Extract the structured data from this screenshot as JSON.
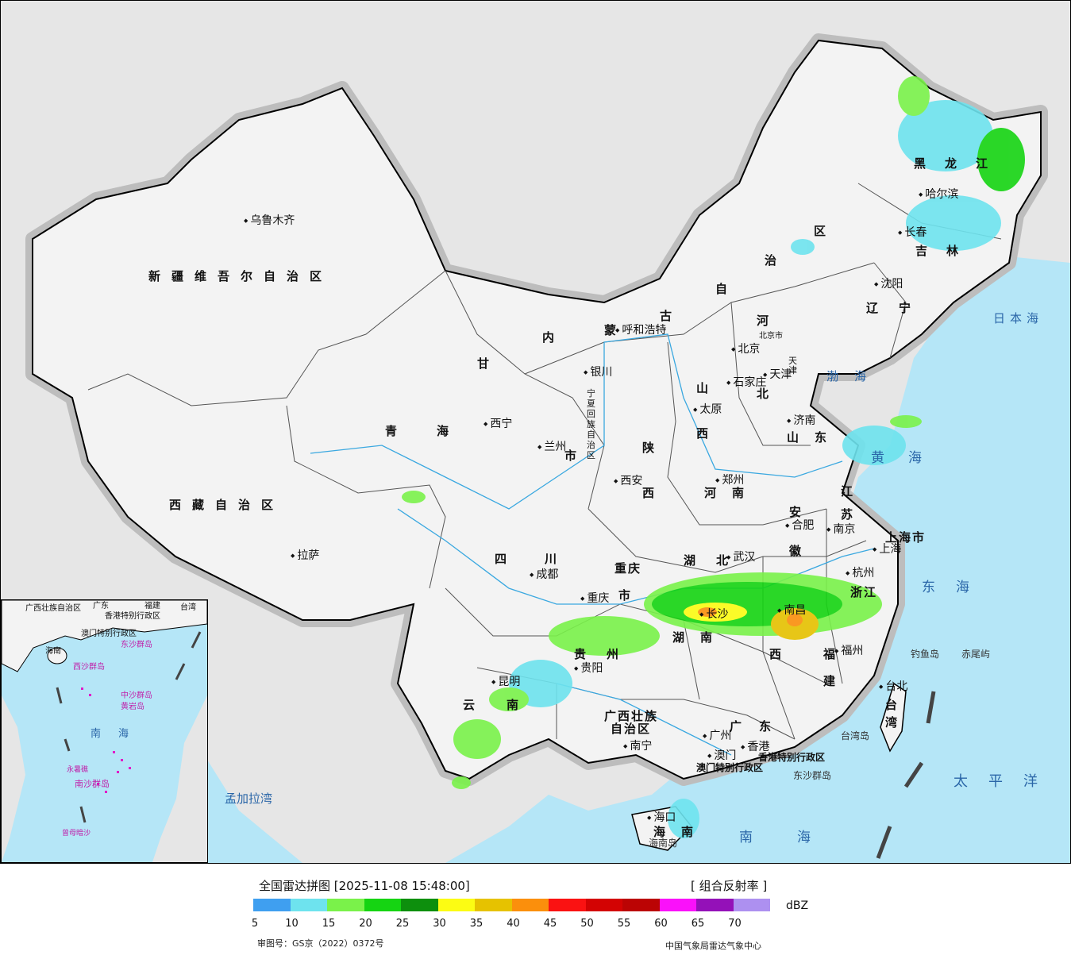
{
  "map": {
    "provinces": [
      {
        "name": "新疆维吾尔自治区",
        "label": "新疆维吾尔自治区"
      },
      {
        "name": "西藏自治区",
        "label": "西藏自治区"
      },
      {
        "name": "青海",
        "label": "青海"
      },
      {
        "name": "甘肃",
        "label": "甘"
      },
      {
        "name": "内蒙古自治区-1",
        "label": "内"
      },
      {
        "name": "内蒙古自治区-2",
        "label": "蒙"
      },
      {
        "name": "内蒙古自治区-3",
        "label": "古"
      },
      {
        "name": "内蒙古自治区-4",
        "label": "自"
      },
      {
        "name": "内蒙古自治区-5",
        "label": "治"
      },
      {
        "name": "内蒙古自治区-6",
        "label": "区"
      },
      {
        "name": "黑龙江",
        "label": "黑龙江"
      },
      {
        "name": "吉林",
        "label": "吉林"
      },
      {
        "name": "辽宁",
        "label": "辽宁"
      },
      {
        "name": "河北-1",
        "label": "河"
      },
      {
        "name": "河北-2",
        "label": "北"
      },
      {
        "name": "山西-1",
        "label": "山"
      },
      {
        "name": "山西-2",
        "label": "西"
      },
      {
        "name": "陕西-1",
        "label": "陕"
      },
      {
        "name": "陕西-2",
        "label": "西"
      },
      {
        "name": "山东",
        "label": "山东"
      },
      {
        "name": "河南",
        "label": "河南"
      },
      {
        "name": "江苏-1",
        "label": "江"
      },
      {
        "name": "江苏-2",
        "label": "苏"
      },
      {
        "name": "安徽-1",
        "label": "安"
      },
      {
        "name": "安徽-2",
        "label": "徽"
      },
      {
        "name": "上海市",
        "label": "上海市"
      },
      {
        "name": "浙江",
        "label": "浙江"
      },
      {
        "name": "湖北",
        "label": "湖北"
      },
      {
        "name": "四川",
        "label": "四川"
      },
      {
        "name": "重庆市-1",
        "label": "重庆"
      },
      {
        "name": "重庆市-2",
        "label": "市"
      },
      {
        "name": "宁夏回族自治区",
        "label": "宁夏回族自治区"
      },
      {
        "name": "湖南",
        "label": "湖南"
      },
      {
        "name": "江西",
        "label": "西"
      },
      {
        "name": "福建-1",
        "label": "福"
      },
      {
        "name": "福建-2",
        "label": "建"
      },
      {
        "name": "贵州",
        "label": "贵州"
      },
      {
        "name": "云南",
        "label": "云南"
      },
      {
        "name": "广西壮族自治区-1",
        "label": "广西壮族"
      },
      {
        "name": "广西壮族自治区-2",
        "label": "自治区"
      },
      {
        "name": "广东",
        "label": "广东"
      },
      {
        "name": "海南",
        "label": "海南"
      },
      {
        "name": "台湾-1",
        "label": "台"
      },
      {
        "name": "台湾-2",
        "label": "湾"
      },
      {
        "name": "天津",
        "label": "天津"
      },
      {
        "name": "北京市",
        "label": "北京市"
      },
      {
        "name": "甘肃-市",
        "label": "市"
      },
      {
        "name": "香港特别行政区",
        "label": "香港特别行政区"
      },
      {
        "name": "澳门特别行政区",
        "label": "澳门特别行政区"
      }
    ],
    "cities": [
      "乌鲁木齐",
      "拉萨",
      "西宁",
      "兰州",
      "银川",
      "呼和浩特",
      "北京",
      "天津",
      "石家庄",
      "太原",
      "济南",
      "郑州",
      "西安",
      "成都",
      "重庆",
      "武汉",
      "合肥",
      "南京",
      "上海",
      "杭州",
      "南昌",
      "福州",
      "长沙",
      "贵阳",
      "昆明",
      "南宁",
      "广州",
      "香港",
      "澳门",
      "海口",
      "台北",
      "哈尔滨",
      "长春",
      "沈阳"
    ],
    "seas": [
      "日本海",
      "渤海",
      "黄海",
      "东海",
      "南海",
      "太平洋",
      "孟加拉湾"
    ],
    "islands": [
      "钓鱼岛",
      "赤尾屿",
      "台湾岛",
      "东沙群岛",
      "海南岛"
    ]
  },
  "inset": {
    "labels": [
      "广西壮族自治区",
      "广东",
      "福建",
      "台湾",
      "香港特别行政区",
      "澳门特别行政区",
      "海南",
      "东沙群岛",
      "西沙群岛",
      "中沙群岛",
      "黄岩岛",
      "南海",
      "永暑礁",
      "南沙群岛",
      "曾母暗沙"
    ]
  },
  "legend": {
    "title": "全国雷达拼图 [2025-11-08 15:48:00]",
    "product": "[ 组合反射率 ]",
    "unit": "dBZ",
    "colors": [
      "#3f9ff0",
      "#6ee3ee",
      "#7af24a",
      "#15d412",
      "#0d8f0d",
      "#fcfc13",
      "#e6c200",
      "#fb8f0c",
      "#fa1212",
      "#d30303",
      "#bb0404",
      "#fa11fa",
      "#9411b8",
      "#ad90f0"
    ],
    "ticks": [
      "5",
      "10",
      "15",
      "20",
      "25",
      "30",
      "35",
      "40",
      "45",
      "50",
      "55",
      "60",
      "65",
      "70"
    ]
  },
  "footer": {
    "review_number": "审图号：GS京（2022）0372号",
    "producer": "中国气象局雷达气象中心"
  }
}
